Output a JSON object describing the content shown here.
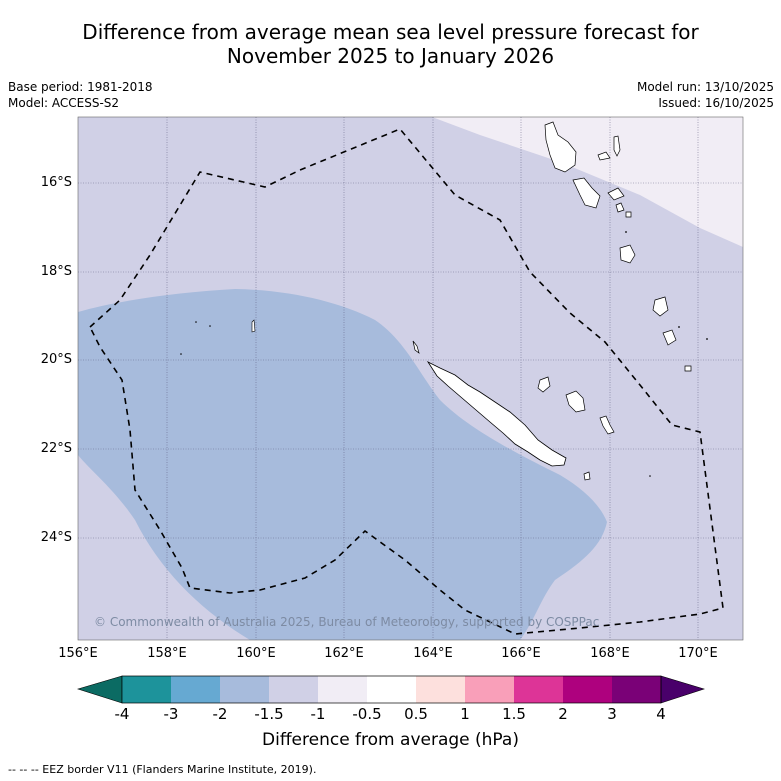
{
  "title": {
    "line1": "Difference from average mean sea level pressure forecast for",
    "line2": "November 2025 to January 2026"
  },
  "meta_left": {
    "base_period": "Base period: 1981-2018",
    "model": "Model: ACCESS-S2"
  },
  "meta_right": {
    "model_run": "Model run: 13/10/2025",
    "issued": "Issued: 16/10/2025"
  },
  "map": {
    "latitude_labels": [
      "16°S",
      "18°S",
      "20°S",
      "22°S",
      "24°S"
    ],
    "longitude_labels": [
      "156°E",
      "158°E",
      "160°E",
      "162°E",
      "164°E",
      "166°E",
      "168°E",
      "170°E"
    ],
    "copyright": "© Commonwealth of Australia 2025, Bureau of Meteorology, supported by COSPPac"
  },
  "colorbar": {
    "title": "Difference from average (hPa)",
    "ticks": [
      "-4",
      "-3",
      "-2",
      "-1.5",
      "-1",
      "-0.5",
      "0.5",
      "1",
      "1.5",
      "2",
      "3",
      "4"
    ],
    "colors": [
      "#0b6b63",
      "#1d939b",
      "#66a9d2",
      "#a7bbdc",
      "#d0d0e6",
      "#f1edf5",
      "#ffffff",
      "#fde0dd",
      "#f99fb9",
      "#dd3497",
      "#ae017e",
      "#7a0177",
      "#49006a"
    ]
  },
  "footer": "--  --  -- EEZ border V11 (Flanders Marine Institute, 2019)."
}
